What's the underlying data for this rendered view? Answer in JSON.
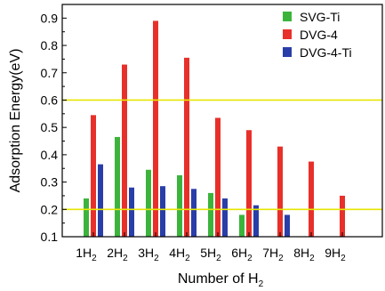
{
  "chart_data": {
    "type": "bar",
    "categories": [
      "1",
      "2",
      "3",
      "4",
      "5",
      "6",
      "7",
      "8",
      "9"
    ],
    "category_prefix": "",
    "category_suffix": "H",
    "category_subscript": "2",
    "series": [
      {
        "name": "SVG-Ti",
        "color": "#3cb43c",
        "values": [
          0.24,
          0.465,
          0.345,
          0.325,
          0.26,
          0.18,
          null,
          null,
          null
        ]
      },
      {
        "name": "DVG-4",
        "color": "#e8302a",
        "values": [
          0.545,
          0.73,
          0.89,
          0.755,
          0.535,
          0.49,
          0.43,
          0.375,
          0.25
        ]
      },
      {
        "name": "DVG-4-Ti",
        "color": "#2a3ea8",
        "values": [
          0.365,
          0.28,
          0.285,
          0.275,
          0.24,
          0.215,
          0.18,
          null,
          null
        ]
      }
    ],
    "reference_lines": [
      {
        "y": 0.6,
        "color": "#e6e600"
      },
      {
        "y": 0.2,
        "color": "#e6e600"
      }
    ],
    "ylim": [
      0.1,
      0.95
    ],
    "yticks": [
      0.1,
      0.2,
      0.3,
      0.4,
      0.5,
      0.6,
      0.7,
      0.8,
      0.9
    ],
    "ylabel": "Adsorption Energy(eV)",
    "xlabel_main": "Number of H",
    "xlabel_sub": "2",
    "legend_position": "top-right"
  }
}
